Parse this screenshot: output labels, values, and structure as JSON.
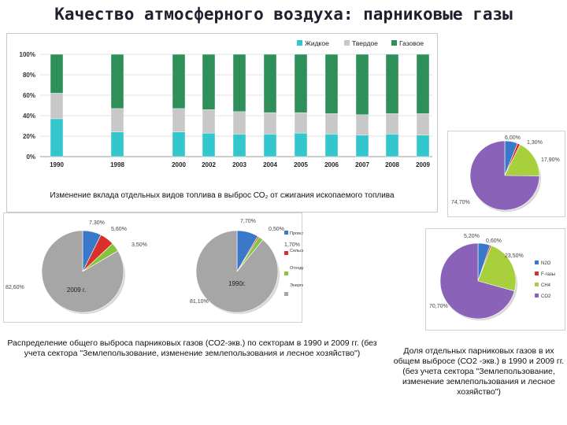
{
  "title": "Качество атмосферного воздуха: парниковые газы",
  "captions": {
    "bar": "Изменение вклада отдельных видов топлива в выброс СО₂ от сжигания ископаемого топлива",
    "sector": "Распределение общего выброса парниковых газов (СО2-экв.) по секторам в 1990  и 2009 гг. (без учета сектора \"Землепользование, изменение землепользования и лесное хозяйство\")",
    "gas": "Доля отдельных парниковых газов в их общем выбросе (СО2 -экв.) в 1990 и 2009 гг. (без учета сектора \"Землепользование, изменение землепользования и лесное хозяйство\")"
  },
  "colors": {
    "liquid": "#33c6cc",
    "solid": "#c8c8c8",
    "gas": "#2f8f58",
    "prom": "#3a78c9",
    "agri": "#d9302a",
    "waste": "#86c440",
    "energy": "#a6a6a6",
    "n2o": "#3a78c9",
    "fgas": "#d9302a",
    "ch4": "#a8cf3c",
    "co2": "#8a63b8"
  },
  "chart_data": [
    {
      "type": "bar",
      "stacked": true,
      "categories": [
        "1990",
        "1998",
        "2000",
        "2002",
        "2003",
        "2004",
        "2005",
        "2006",
        "2007",
        "2008",
        "2009"
      ],
      "series": [
        {
          "name": "Жидкое",
          "values": [
            37,
            24,
            24,
            23,
            22,
            22,
            23,
            22,
            21,
            22,
            21
          ]
        },
        {
          "name": "Твердое",
          "values": [
            25,
            23,
            23,
            23,
            22,
            21,
            20,
            20,
            20,
            20,
            21
          ]
        },
        {
          "name": "Газовое",
          "values": [
            38,
            53,
            53,
            54,
            56,
            57,
            57,
            58,
            59,
            58,
            58
          ]
        }
      ],
      "y_ticks": [
        "0%",
        "20%",
        "40%",
        "60%",
        "80%",
        "100%"
      ],
      "ylim": [
        0,
        100
      ],
      "legend": "top-right"
    },
    {
      "type": "pie",
      "center_label": "2009 г.",
      "labels": [
        "7,30%",
        "5,60%",
        "3,50%",
        "82,60%"
      ],
      "values": [
        7.3,
        5.6,
        3.5,
        82.6
      ]
    },
    {
      "type": "pie",
      "center_label": "1990г.",
      "labels": [
        "7,70%",
        "0,50%",
        "1,70%",
        "81,10%"
      ],
      "values": [
        7.7,
        0.5,
        1.7,
        81.1
      ],
      "legend": [
        "Пром.процессы",
        "Сельское хозяйство",
        "Отходы",
        "Энергетика"
      ]
    },
    {
      "type": "pie",
      "labels": [
        "6,00%",
        "1,30%",
        "17,90%",
        "74,70%"
      ],
      "values": [
        6.0,
        1.3,
        17.9,
        74.7
      ]
    },
    {
      "type": "pie",
      "labels": [
        "5,20%",
        "0,60%",
        "23,50%",
        "70,70%"
      ],
      "values": [
        5.2,
        0.6,
        23.5,
        70.7
      ],
      "legend": [
        "N2O",
        "F-газы",
        "CH4",
        "CO2"
      ]
    }
  ]
}
